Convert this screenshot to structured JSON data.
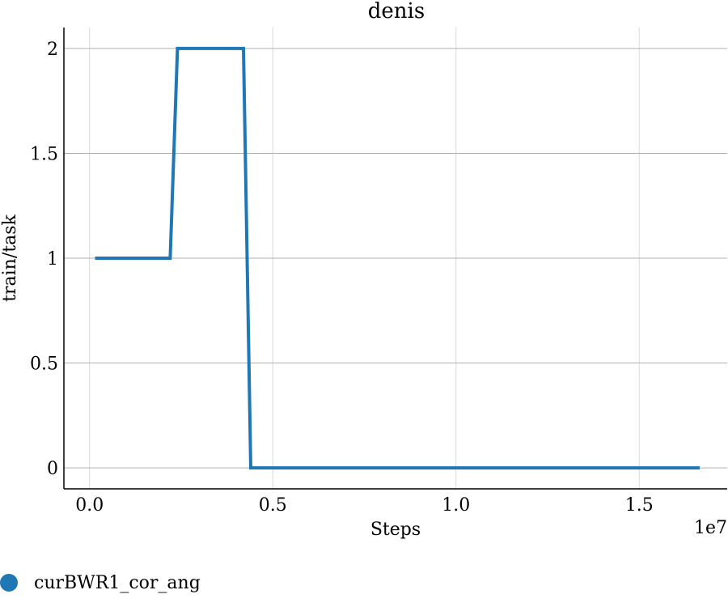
{
  "chart_data": {
    "type": "line",
    "title": "denis",
    "xlabel": "Steps",
    "ylabel": "train/task",
    "x_offset_label": "1e7",
    "xlim": [
      -0.07,
      1.74
    ],
    "ylim": [
      -0.1,
      2.1
    ],
    "xticks": [
      0.0,
      0.5,
      1.0,
      1.5
    ],
    "xtick_labels": [
      "0.0",
      "0.5",
      "1.0",
      "1.5"
    ],
    "yticks": [
      0,
      0.5,
      1,
      1.5,
      2
    ],
    "ytick_labels": [
      "0",
      "0.5",
      "1",
      "1.5",
      "2"
    ],
    "grid": true,
    "legend_position": "bottom-left",
    "series": [
      {
        "name": "curBWR1_cor_ang",
        "color": "#1f77b4",
        "x": [
          0.015,
          0.22,
          0.24,
          0.42,
          0.44,
          1.665
        ],
        "y": [
          1,
          1,
          2,
          2,
          0,
          0
        ]
      }
    ]
  }
}
